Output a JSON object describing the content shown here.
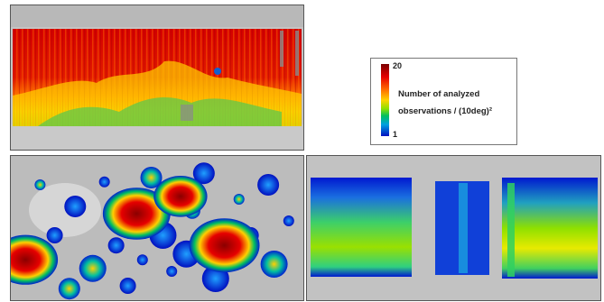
{
  "legend": {
    "title_line1": "Number of analyzed",
    "title_line2": "observations / (10deg)²",
    "max_label": "20",
    "min_label": "1",
    "colormap": [
      "#0010c0",
      "#00a0e0",
      "#00c060",
      "#8ee000",
      "#ffd200",
      "#ff6a00",
      "#e60000",
      "#7a0000"
    ]
  },
  "chart_data": [
    {
      "type": "heatmap",
      "title": "",
      "description_level": "dense coverage",
      "color_range": [
        1,
        20
      ],
      "bands": [
        {
          "lat_start": 0.0,
          "lat_end": 0.1,
          "values": [
            null
          ]
        },
        {
          "lat_start": 0.1,
          "lat_end": 0.55,
          "values": [
            18,
            17,
            19,
            16,
            18,
            15,
            17,
            18,
            19,
            16,
            17,
            18
          ]
        },
        {
          "lat_start": 0.55,
          "lat_end": 0.72,
          "values": [
            12,
            9,
            7,
            6,
            10,
            11,
            8,
            14,
            9,
            7,
            10,
            12
          ]
        },
        {
          "lat_start": 0.72,
          "lat_end": 0.8,
          "values": [
            14,
            13,
            10,
            8,
            6,
            5,
            7,
            9,
            11,
            12,
            14,
            15
          ]
        },
        {
          "lat_start": 0.8,
          "lat_end": 1.0,
          "values": [
            null
          ]
        }
      ]
    },
    {
      "type": "heatmap",
      "title": "",
      "color_range": [
        1,
        20
      ],
      "hotspots": [
        {
          "lon": 0.43,
          "lat": 0.4,
          "value": 19
        },
        {
          "lon": 0.73,
          "lat": 0.62,
          "value": 20
        },
        {
          "lon": 0.05,
          "lat": 0.72,
          "value": 18
        },
        {
          "lon": 0.58,
          "lat": 0.28,
          "value": 14
        }
      ]
    },
    {
      "type": "heatmap",
      "title": "",
      "color_range": [
        1,
        20
      ],
      "blocks": [
        {
          "lon_start": 0.02,
          "lon_end": 0.35,
          "value": 8
        },
        {
          "lon_start": 0.44,
          "lon_end": 0.62,
          "value": 3
        },
        {
          "lon_start": 0.66,
          "lon_end": 0.99,
          "value": 10
        }
      ]
    }
  ]
}
